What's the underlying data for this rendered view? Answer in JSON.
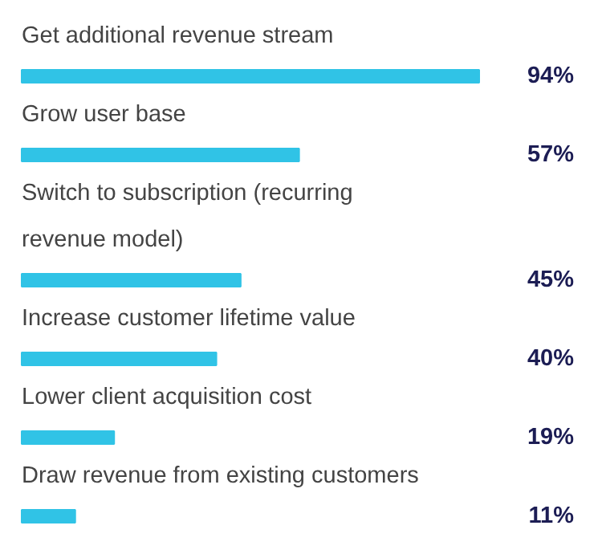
{
  "chart_data": {
    "type": "bar",
    "orientation": "horizontal",
    "categories": [
      "Get additional revenue stream",
      "Grow user base",
      "Switch to subscription (recurring\nrevenue model)",
      "Increase customer lifetime value",
      "Lower client acquisition cost",
      "Draw revenue from existing customers"
    ],
    "values": [
      94,
      57,
      45,
      40,
      19,
      11
    ],
    "value_labels": [
      "94%",
      "57%",
      "45%",
      "40%",
      "19%",
      "11%"
    ],
    "color": "#30c3e6",
    "tick_labels": false,
    "grid": false
  }
}
